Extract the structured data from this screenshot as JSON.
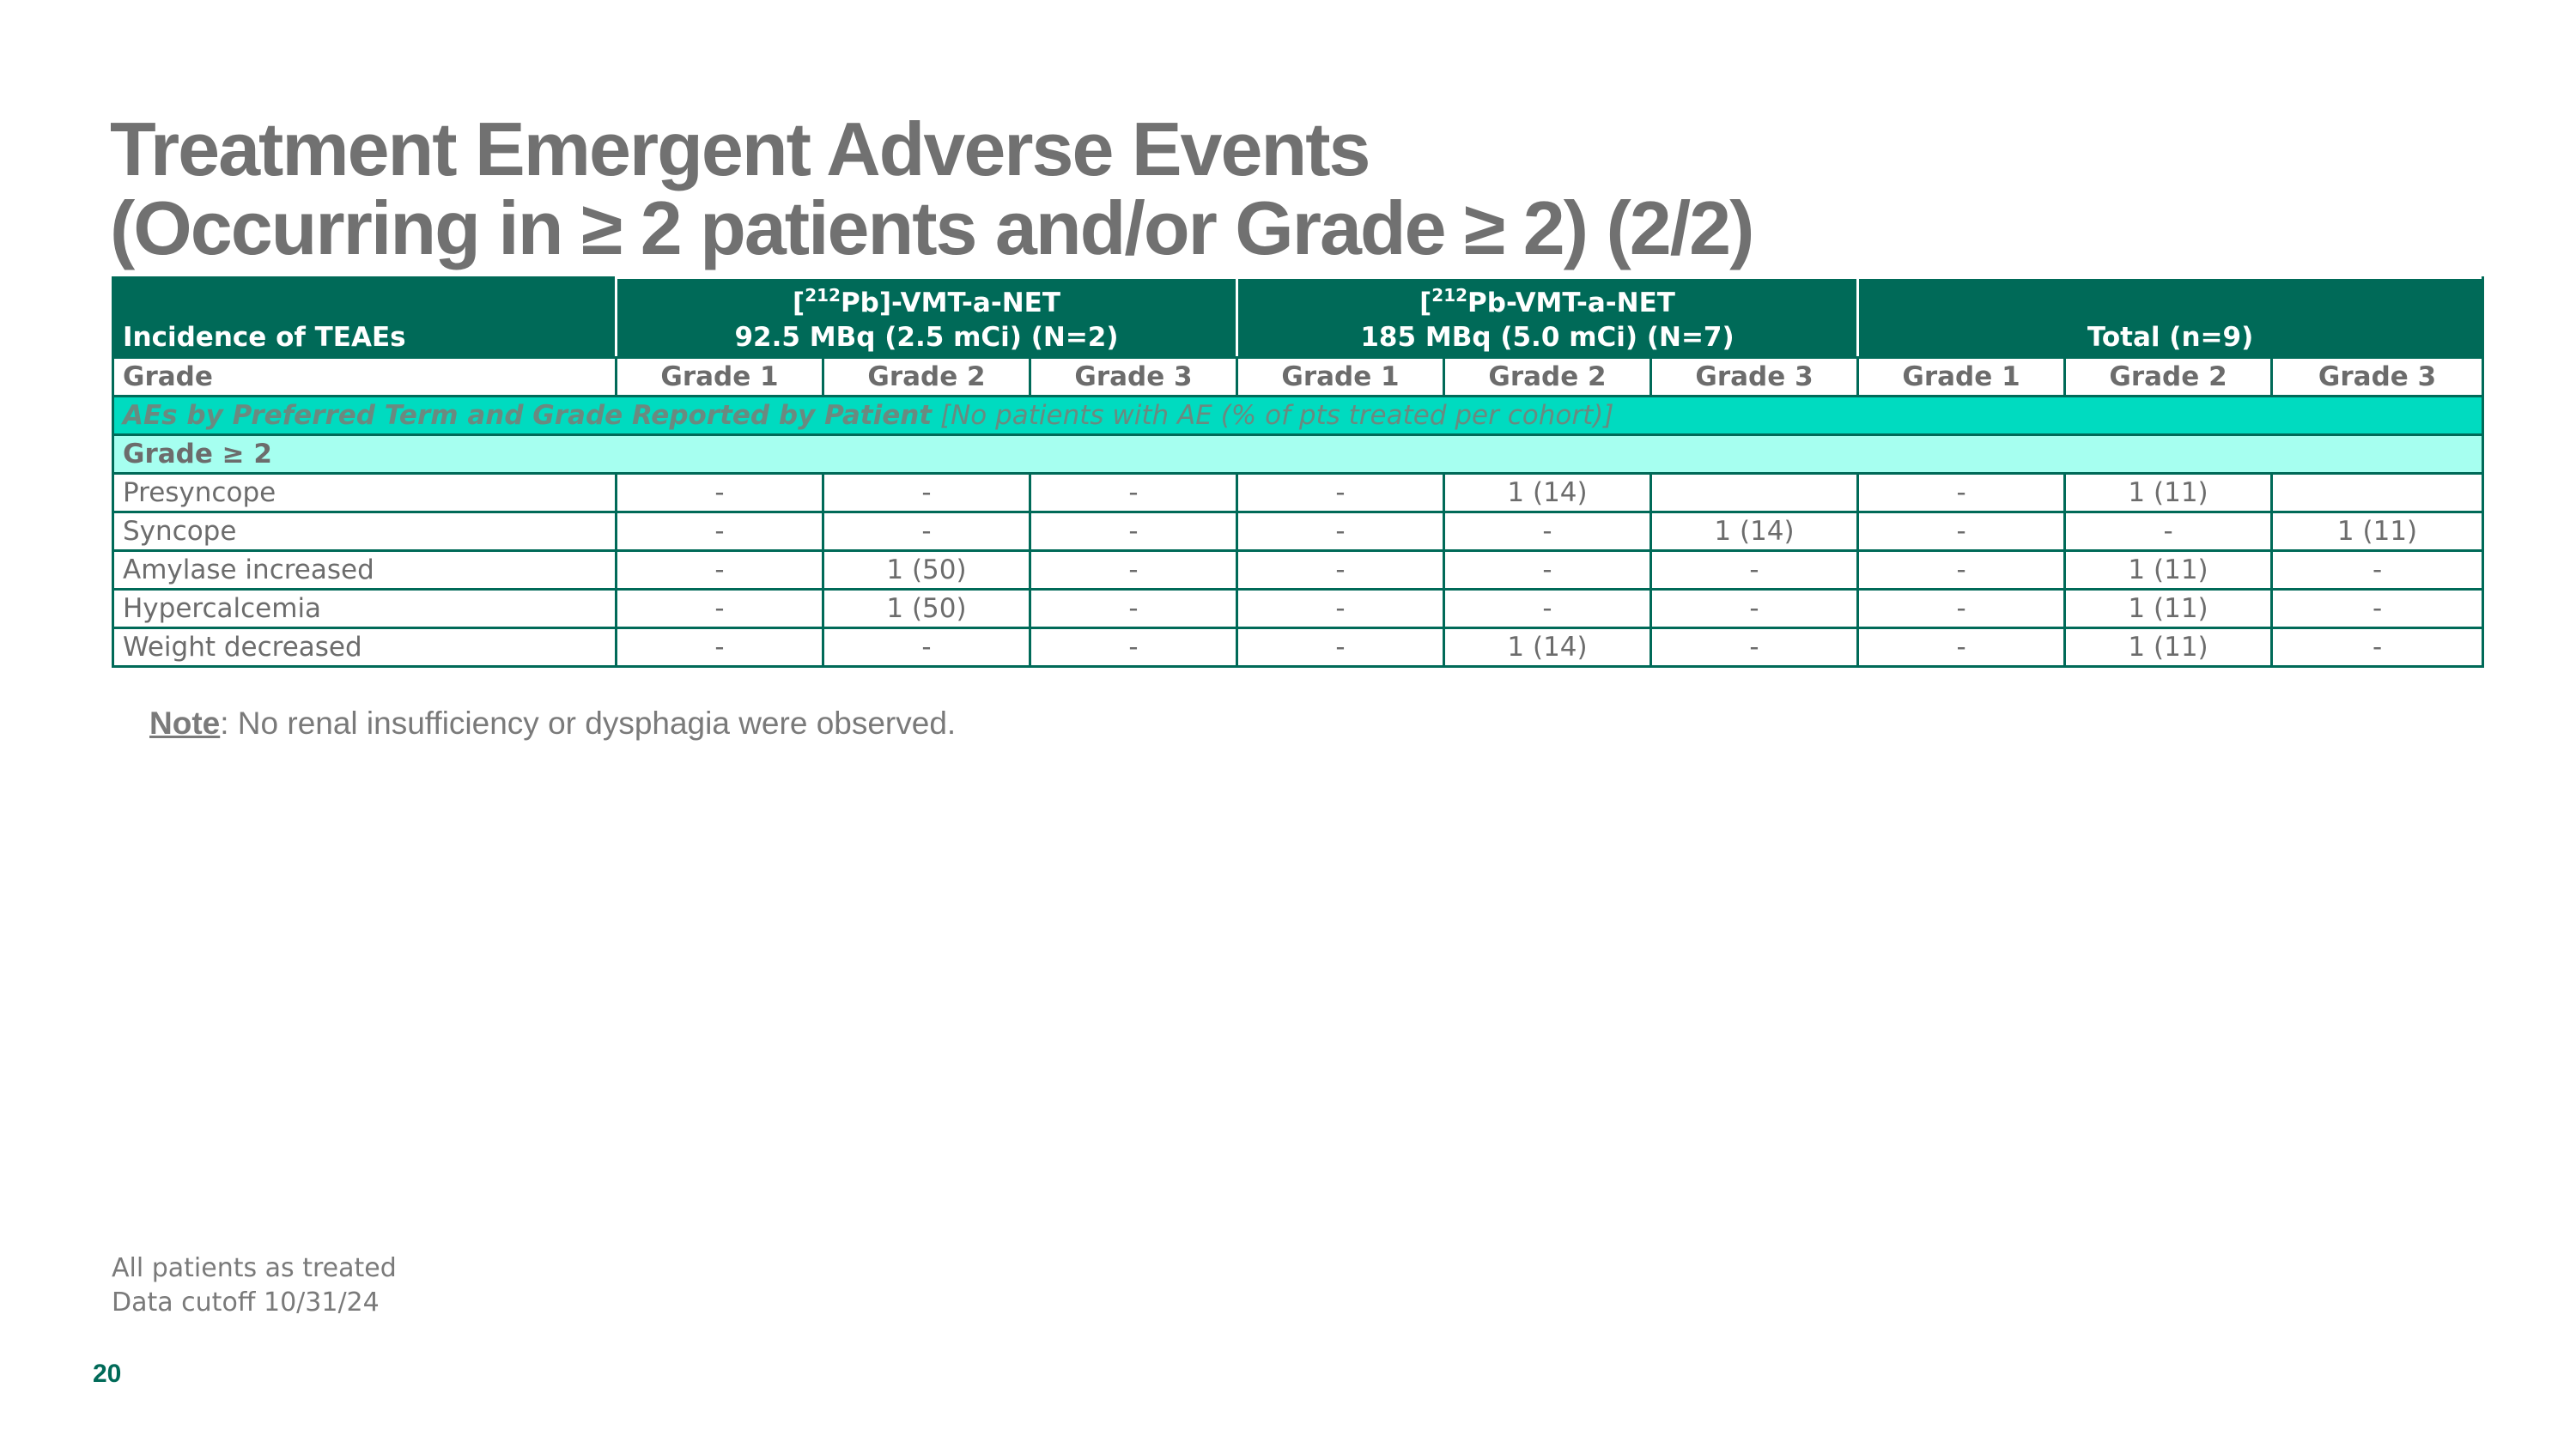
{
  "title": {
    "line1": "Treatment Emergent Adverse Events",
    "line2": "(Occurring in ≥ 2 patients and/or Grade ≥ 2) (2/2)"
  },
  "table": {
    "corner_label": "Incidence of TEAEs",
    "cohorts": [
      {
        "pre": "[",
        "sup": "212",
        "post": "Pb]-VMT-a-NET",
        "line2": "92.5 MBq (2.5 mCi) (N=2)"
      },
      {
        "pre": "[",
        "sup": "212",
        "post": "Pb-VMT-a-NET",
        "line2": "185 MBq (5.0 mCi) (N=7)"
      },
      {
        "pre": "",
        "sup": "",
        "post": "",
        "line2": "Total (n=9)"
      }
    ],
    "grade_row": {
      "label": "Grade",
      "grades": [
        "Grade 1",
        "Grade 2",
        "Grade 3",
        "Grade 1",
        "Grade 2",
        "Grade 3",
        "Grade 1",
        "Grade 2",
        "Grade 3"
      ]
    },
    "section": {
      "bold": "AEs by Preferred Term and Grade Reported by Patient",
      "rest": " [No patients with AE (% of pts treated per cohort)]"
    },
    "subsection": "Grade ≥ 2",
    "rows": [
      {
        "term": "Presyncope",
        "cells": [
          "-",
          "-",
          "-",
          "-",
          "1 (14)",
          "",
          "-",
          "1 (11)",
          ""
        ]
      },
      {
        "term": "Syncope",
        "cells": [
          "-",
          "-",
          "-",
          "-",
          "-",
          "1 (14)",
          "-",
          "-",
          "1 (11)"
        ]
      },
      {
        "term": "Amylase increased",
        "cells": [
          "-",
          "1 (50)",
          "-",
          "-",
          "-",
          "-",
          "-",
          "1 (11)",
          "-"
        ]
      },
      {
        "term": "Hypercalcemia",
        "cells": [
          "-",
          "1 (50)",
          "-",
          "-",
          "-",
          "-",
          "-",
          "1 (11)",
          "-"
        ]
      },
      {
        "term": "Weight decreased",
        "cells": [
          "-",
          "-",
          "-",
          "-",
          "1 (14)",
          "-",
          "-",
          "1 (11)",
          "-"
        ]
      }
    ]
  },
  "note": {
    "label": "Note",
    "text": ": No renal insufficiency or dysphagia were observed."
  },
  "footnotes": [
    "All patients as treated",
    "Data cutoff 10/31/24"
  ],
  "page_number": "20",
  "colors": {
    "header_green": "#006a58",
    "section_teal": "#00dbc0",
    "subsection_mint": "#a6fff0",
    "title_gray": "#717171"
  }
}
